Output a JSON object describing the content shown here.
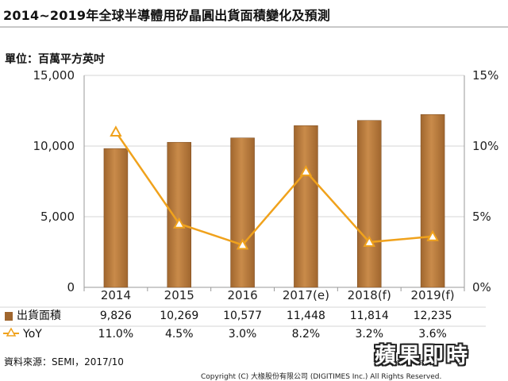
{
  "title": "2014~2019年全球半導體用矽晶圓出貨面積變化及預測",
  "unit_label": "單位：百萬平方英吋",
  "source": "資料來源：SEMI，2017/10",
  "copyright": "Copyright (C) 大椽股份有限公司 (DIGITIMES Inc.) All Rights Reserved.",
  "logo_text": "蘋果即時",
  "colors": {
    "bar": "#a0662e",
    "bar_light": "#c98b4a",
    "line": "#f0a21c",
    "grid": "#d4d4d4",
    "axis": "#9a9a9a"
  },
  "chart_data": {
    "type": "bar",
    "categories": [
      "2014",
      "2015",
      "2016",
      "2017(e)",
      "2018(f)",
      "2019(f)"
    ],
    "series": [
      {
        "name": "出貨面積",
        "values": [
          9826,
          10269,
          10577,
          11448,
          11814,
          12235
        ],
        "labels": [
          "9,826",
          "10,269",
          "10,577",
          "11,448",
          "11,814",
          "12,235"
        ],
        "color": "#a0662e"
      },
      {
        "name": "YoY",
        "type": "line",
        "axis": "right",
        "values": [
          11.0,
          4.5,
          3.0,
          8.2,
          3.2,
          3.6
        ],
        "labels": [
          "11.0%",
          "4.5%",
          "3.0%",
          "8.2%",
          "3.2%",
          "3.6%"
        ],
        "color": "#f0a21c"
      }
    ],
    "ylim": [
      0,
      15000
    ],
    "y_ticks": [
      "0",
      "5,000",
      "10,000",
      "15,000"
    ],
    "y2lim": [
      0,
      15
    ],
    "y2_ticks": [
      "0%",
      "5%",
      "10%",
      "15%"
    ],
    "grid": true,
    "legend": "table-below"
  }
}
